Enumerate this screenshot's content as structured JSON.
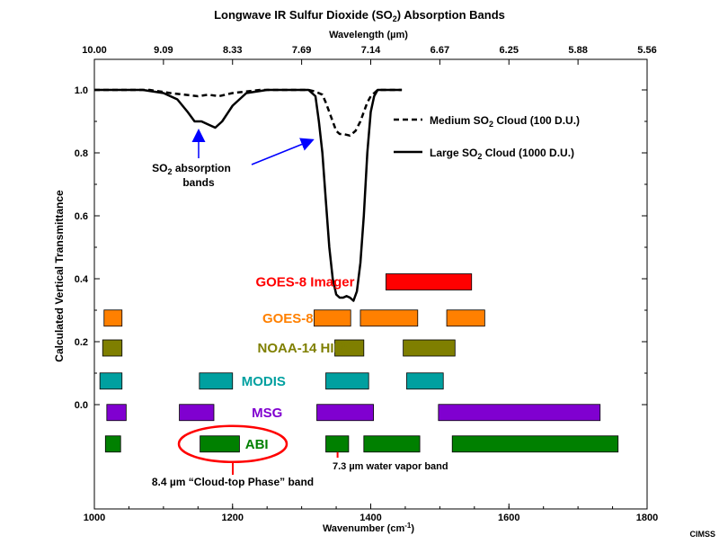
{
  "chart_data": {
    "type": "line",
    "title_pre": "Longwave IR Sulfur Dioxide (SO",
    "title_sub": "2",
    "title_post": ") Absorption Bands",
    "xlabel_pre": "Wavenumber (cm",
    "xlabel_sup": "-1",
    "xlabel_post": ")",
    "ylabel": "Calculated Vertical Transmittance",
    "top_axis_label": "Wavelength (µm)",
    "xlim": [
      1000,
      1800
    ],
    "ylim": [
      -0.33,
      1.1
    ],
    "x_ticks": [
      1000,
      1200,
      1400,
      1600,
      1800
    ],
    "y_ticks": [
      0.0,
      0.2,
      0.4,
      0.6,
      0.8,
      1.0
    ],
    "y_tick_labels": [
      "0.0",
      "0.2",
      "0.4",
      "0.6",
      "0.8",
      "1.0"
    ],
    "top_ticks": [
      {
        "wn": 1000,
        "label": "10.00"
      },
      {
        "wn": 1100,
        "label": "9.09"
      },
      {
        "wn": 1200,
        "label": "8.33"
      },
      {
        "wn": 1300,
        "label": "7.69"
      },
      {
        "wn": 1400,
        "label": "7.14"
      },
      {
        "wn": 1500,
        "label": "6.67"
      },
      {
        "wn": 1600,
        "label": "6.25"
      },
      {
        "wn": 1700,
        "label": "5.88"
      },
      {
        "wn": 1800,
        "label": "5.56"
      }
    ],
    "series": [
      {
        "name_pre": "Medium SO",
        "name_sub": "2",
        "name_post": " Cloud (100 D.U.)",
        "style": "dashed",
        "x": [
          1000,
          1080,
          1110,
          1130,
          1150,
          1165,
          1180,
          1200,
          1240,
          1280,
          1310,
          1320,
          1330,
          1335,
          1340,
          1345,
          1350,
          1355,
          1360,
          1370,
          1378,
          1385,
          1390,
          1395,
          1400,
          1405,
          1410,
          1415,
          1420,
          1430,
          1445
        ],
        "y": [
          1.0,
          1.0,
          0.99,
          0.985,
          0.98,
          0.985,
          0.98,
          0.99,
          1.0,
          1.0,
          1.0,
          0.995,
          0.985,
          0.96,
          0.93,
          0.9,
          0.87,
          0.86,
          0.86,
          0.855,
          0.87,
          0.9,
          0.93,
          0.96,
          0.98,
          0.99,
          1.0,
          1.0,
          1.0,
          1.0,
          1.0
        ]
      },
      {
        "name_pre": "Large SO",
        "name_sub": "2",
        "name_post": " Cloud (1000 D.U.)",
        "style": "solid",
        "x": [
          1000,
          1070,
          1100,
          1120,
          1135,
          1145,
          1155,
          1165,
          1175,
          1185,
          1200,
          1220,
          1250,
          1280,
          1310,
          1320,
          1325,
          1330,
          1335,
          1340,
          1345,
          1350,
          1355,
          1360,
          1365,
          1370,
          1375,
          1380,
          1385,
          1390,
          1395,
          1400,
          1405,
          1410,
          1415,
          1425,
          1445
        ],
        "y": [
          1.0,
          1.0,
          0.99,
          0.97,
          0.93,
          0.9,
          0.9,
          0.89,
          0.88,
          0.9,
          0.95,
          0.99,
          1.0,
          1.0,
          1.0,
          0.98,
          0.9,
          0.8,
          0.65,
          0.5,
          0.4,
          0.35,
          0.34,
          0.34,
          0.345,
          0.34,
          0.33,
          0.36,
          0.45,
          0.6,
          0.8,
          0.93,
          0.98,
          1.0,
          1.0,
          1.0,
          1.0
        ]
      }
    ],
    "instruments": [
      {
        "name": "GOES-8 Imager",
        "color": "#ff0000",
        "y": 0.39,
        "label_x": 1305,
        "bands": [
          [
            1422,
            1546
          ]
        ]
      },
      {
        "name": "GOES-8 Sndr",
        "color": "#ff8000",
        "y": 0.275,
        "label_x": 1305,
        "bands": [
          [
            1014,
            1040
          ],
          [
            1318,
            1371
          ],
          [
            1385,
            1468
          ],
          [
            1510,
            1565
          ]
        ]
      },
      {
        "name": "NOAA-14 HIRS",
        "color": "#7f7f00",
        "y": 0.18,
        "label_x": 1305,
        "bands": [
          [
            1012,
            1040
          ],
          [
            1348,
            1390
          ],
          [
            1447,
            1522
          ]
        ]
      },
      {
        "name": "MODIS",
        "color": "#00a0a0",
        "y": 0.075,
        "label_x": 1245,
        "bands": [
          [
            1008,
            1040
          ],
          [
            1152,
            1200
          ],
          [
            1335,
            1397
          ],
          [
            1452,
            1505
          ]
        ]
      },
      {
        "name": "MSG",
        "color": "#8000d0",
        "y": -0.025,
        "label_x": 1250,
        "bands": [
          [
            1018,
            1046
          ],
          [
            1123,
            1173
          ],
          [
            1322,
            1404
          ],
          [
            1498,
            1732
          ]
        ]
      },
      {
        "name": "ABI",
        "color": "#008000",
        "y": -0.125,
        "label_x": 1235,
        "bands": [
          [
            1016,
            1038
          ],
          [
            1153,
            1210
          ],
          [
            1335,
            1368
          ],
          [
            1390,
            1471
          ],
          [
            1518,
            1758
          ]
        ]
      }
    ],
    "annotations": {
      "so2_pre": "SO",
      "so2_sub": "2",
      "so2_post": " absorption",
      "so2_line2": "bands",
      "cloud_top": "8.4 µm  “Cloud-top Phase” band",
      "water_vapor": "7.3 µm water vapor band",
      "credit": "CIMSS"
    },
    "grid": false
  }
}
